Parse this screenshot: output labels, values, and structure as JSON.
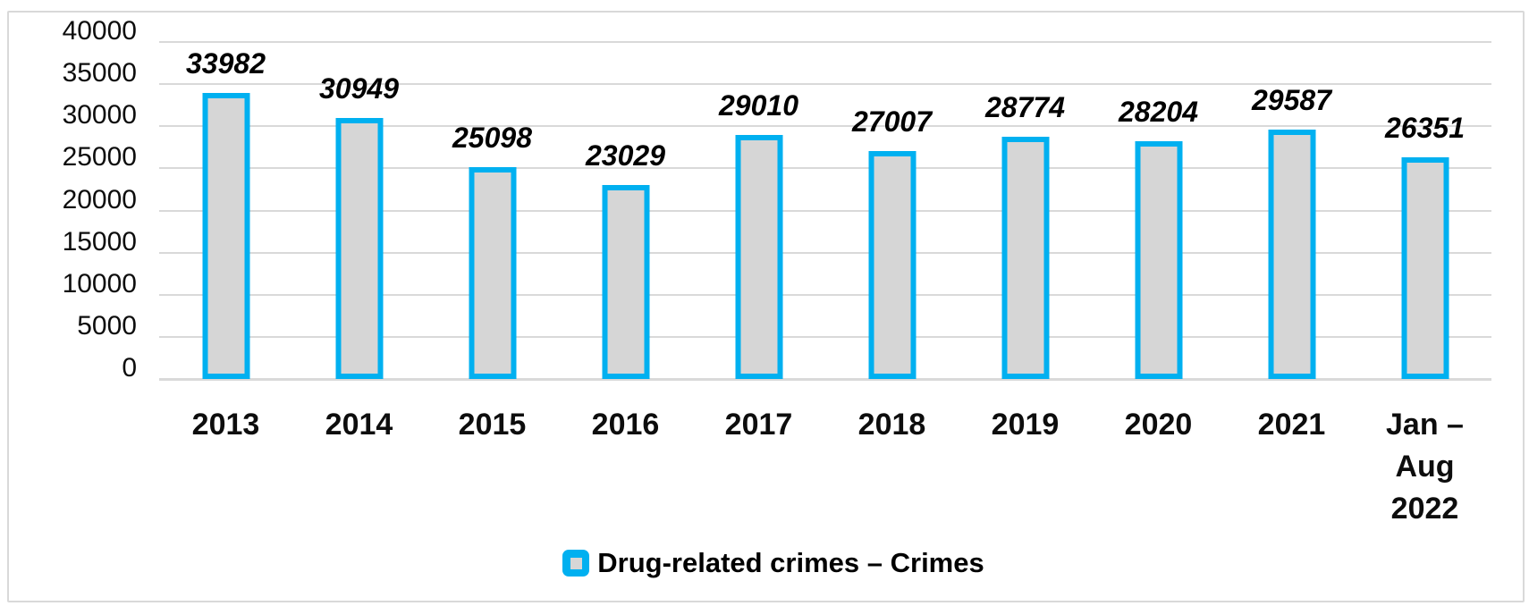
{
  "chart_data": {
    "type": "bar",
    "title": "",
    "xlabel": "",
    "ylabel": "",
    "categories": [
      "2013",
      "2014",
      "2015",
      "2016",
      "2017",
      "2018",
      "2019",
      "2020",
      "2021",
      "Jan –\nAug\n2022"
    ],
    "series": [
      {
        "name": "Drug-related crimes – Crimes",
        "values": [
          33982,
          30949,
          25098,
          23029,
          29010,
          27007,
          28774,
          28204,
          29587,
          26351
        ]
      }
    ],
    "data_labels": [
      33982,
      30949,
      25098,
      23029,
      29010,
      27007,
      28774,
      28204,
      29587,
      26351
    ],
    "ylim": [
      0,
      40000
    ],
    "ytick_interval": 5000,
    "yticks": [
      0,
      5000,
      10000,
      15000,
      20000,
      25000,
      30000,
      35000,
      40000
    ],
    "grid": true,
    "legend_position": "bottom"
  },
  "legend": {
    "items": [
      {
        "label": "Drug-related crimes – Crimes"
      }
    ]
  },
  "colors": {
    "bar_fill": "#d6d6d6",
    "bar_border": "#00b0f0",
    "gridline": "#d9d9d9",
    "frame_border": "#d9d9d9",
    "label_text": "#000000"
  }
}
